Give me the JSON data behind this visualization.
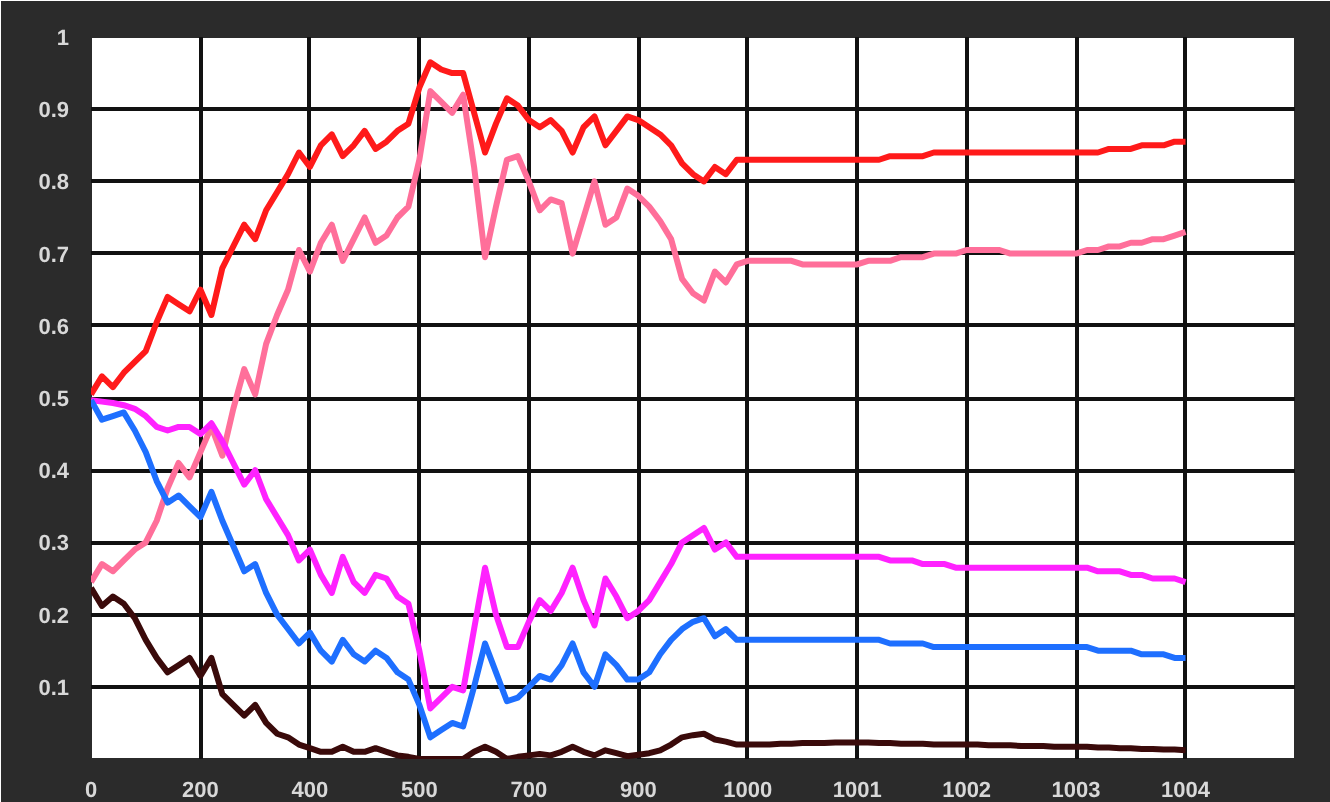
{
  "chart_data": {
    "type": "line",
    "categories": [
      "0",
      null,
      null,
      null,
      null,
      null,
      null,
      null,
      null,
      null,
      "200",
      null,
      null,
      null,
      null,
      null,
      null,
      null,
      null,
      null,
      "400",
      null,
      null,
      null,
      null,
      null,
      null,
      null,
      null,
      null,
      "500",
      null,
      null,
      null,
      null,
      null,
      null,
      null,
      null,
      null,
      "700",
      null,
      null,
      null,
      null,
      null,
      null,
      null,
      null,
      null,
      "900",
      null,
      null,
      null,
      null,
      null,
      null,
      null,
      null,
      null,
      "1000",
      null,
      null,
      null,
      null,
      null,
      null,
      null,
      null,
      null,
      "1001",
      null,
      null,
      null,
      null,
      null,
      null,
      null,
      null,
      null,
      "1002",
      null,
      null,
      null,
      null,
      null,
      null,
      null,
      null,
      null,
      "1003",
      null,
      null,
      null,
      null,
      null,
      null,
      null,
      null,
      null,
      "1004"
    ],
    "ylim": [
      0,
      1
    ],
    "yticks": [
      {
        "value": 0,
        "label": null
      },
      0.1,
      0.2,
      0.3,
      0.4,
      0.5,
      0.6,
      0.7,
      0.8,
      0.9,
      1
    ],
    "grid": true,
    "marker": "none",
    "line_style": "solid",
    "series": [
      {
        "color": "#ff1a1a",
        "values": [
          0.505,
          0.53,
          0.515,
          0.535,
          0.55,
          0.565,
          0.605,
          0.64,
          0.63,
          0.62,
          0.65,
          0.615,
          0.68,
          0.71,
          0.74,
          0.72,
          0.76,
          0.785,
          0.81,
          0.84,
          0.82,
          0.85,
          0.865,
          0.835,
          0.85,
          0.87,
          0.845,
          0.855,
          0.87,
          0.88,
          0.93,
          0.965,
          0.955,
          0.95,
          0.95,
          0.895,
          0.84,
          0.88,
          0.915,
          0.905,
          0.885,
          0.875,
          0.885,
          0.87,
          0.84,
          0.875,
          0.89,
          0.85,
          0.87,
          0.89,
          0.885,
          0.875,
          0.865,
          0.85,
          0.825,
          0.81,
          0.8,
          0.82,
          0.81,
          0.83,
          0.83,
          0.83,
          0.83,
          0.83,
          0.83,
          0.83,
          0.83,
          0.83,
          0.83,
          0.83,
          0.83,
          0.83,
          0.83,
          0.835,
          0.835,
          0.835,
          0.835,
          0.84,
          0.84,
          0.84,
          0.84,
          0.84,
          0.84,
          0.84,
          0.84,
          0.84,
          0.84,
          0.84,
          0.84,
          0.84,
          0.84,
          0.84,
          0.84,
          0.845,
          0.845,
          0.845,
          0.85,
          0.85,
          0.85,
          0.855,
          0.855
        ]
      },
      {
        "color": "#ff6f9a",
        "values": [
          0.245,
          0.27,
          0.26,
          0.275,
          0.29,
          0.3,
          0.33,
          0.375,
          0.41,
          0.39,
          0.425,
          0.46,
          0.42,
          0.485,
          0.54,
          0.505,
          0.575,
          0.615,
          0.65,
          0.705,
          0.675,
          0.715,
          0.74,
          0.69,
          0.72,
          0.75,
          0.715,
          0.725,
          0.75,
          0.765,
          0.83,
          0.925,
          0.91,
          0.895,
          0.92,
          0.82,
          0.695,
          0.765,
          0.83,
          0.835,
          0.8,
          0.76,
          0.775,
          0.77,
          0.7,
          0.75,
          0.8,
          0.74,
          0.75,
          0.79,
          0.78,
          0.765,
          0.745,
          0.72,
          0.665,
          0.645,
          0.635,
          0.675,
          0.66,
          0.685,
          0.69,
          0.69,
          0.69,
          0.69,
          0.69,
          0.685,
          0.685,
          0.685,
          0.685,
          0.685,
          0.685,
          0.69,
          0.69,
          0.69,
          0.695,
          0.695,
          0.695,
          0.7,
          0.7,
          0.7,
          0.705,
          0.705,
          0.705,
          0.705,
          0.7,
          0.7,
          0.7,
          0.7,
          0.7,
          0.7,
          0.7,
          0.705,
          0.705,
          0.71,
          0.71,
          0.715,
          0.715,
          0.72,
          0.72,
          0.725,
          0.73
        ]
      },
      {
        "color": "#ff22ff",
        "values": [
          0.497,
          0.495,
          0.493,
          0.49,
          0.485,
          0.475,
          0.46,
          0.455,
          0.46,
          0.46,
          0.45,
          0.465,
          0.44,
          0.41,
          0.38,
          0.4,
          0.36,
          0.335,
          0.31,
          0.275,
          0.29,
          0.255,
          0.23,
          0.28,
          0.245,
          0.23,
          0.255,
          0.25,
          0.225,
          0.215,
          0.15,
          0.07,
          0.085,
          0.1,
          0.095,
          0.18,
          0.265,
          0.2,
          0.155,
          0.155,
          0.19,
          0.22,
          0.205,
          0.23,
          0.265,
          0.22,
          0.185,
          0.25,
          0.225,
          0.195,
          0.205,
          0.22,
          0.245,
          0.27,
          0.3,
          0.31,
          0.32,
          0.29,
          0.3,
          0.28,
          0.28,
          0.28,
          0.28,
          0.28,
          0.28,
          0.28,
          0.28,
          0.28,
          0.28,
          0.28,
          0.28,
          0.28,
          0.28,
          0.275,
          0.275,
          0.275,
          0.27,
          0.27,
          0.27,
          0.265,
          0.265,
          0.265,
          0.265,
          0.265,
          0.265,
          0.265,
          0.265,
          0.265,
          0.265,
          0.265,
          0.265,
          0.265,
          0.26,
          0.26,
          0.26,
          0.255,
          0.255,
          0.25,
          0.25,
          0.25,
          0.245
        ]
      },
      {
        "color": "#1e6fff",
        "values": [
          0.497,
          0.47,
          0.475,
          0.48,
          0.455,
          0.425,
          0.385,
          0.355,
          0.365,
          0.35,
          0.335,
          0.37,
          0.33,
          0.295,
          0.26,
          0.27,
          0.23,
          0.2,
          0.18,
          0.16,
          0.175,
          0.15,
          0.135,
          0.165,
          0.145,
          0.135,
          0.15,
          0.14,
          0.12,
          0.11,
          0.075,
          0.03,
          0.04,
          0.05,
          0.045,
          0.1,
          0.16,
          0.12,
          0.08,
          0.085,
          0.1,
          0.115,
          0.11,
          0.13,
          0.16,
          0.12,
          0.1,
          0.145,
          0.13,
          0.11,
          0.11,
          0.12,
          0.145,
          0.165,
          0.18,
          0.19,
          0.195,
          0.17,
          0.18,
          0.165,
          0.165,
          0.165,
          0.165,
          0.165,
          0.165,
          0.165,
          0.165,
          0.165,
          0.165,
          0.165,
          0.165,
          0.165,
          0.165,
          0.16,
          0.16,
          0.16,
          0.16,
          0.155,
          0.155,
          0.155,
          0.155,
          0.155,
          0.155,
          0.155,
          0.155,
          0.155,
          0.155,
          0.155,
          0.155,
          0.155,
          0.155,
          0.155,
          0.15,
          0.15,
          0.15,
          0.15,
          0.145,
          0.145,
          0.145,
          0.14,
          0.14
        ]
      },
      {
        "color": "#3a0a0a",
        "values": [
          0.237,
          0.212,
          0.225,
          0.215,
          0.195,
          0.165,
          0.14,
          0.12,
          0.13,
          0.14,
          0.115,
          0.14,
          0.09,
          0.075,
          0.06,
          0.075,
          0.05,
          0.035,
          0.03,
          0.02,
          0.015,
          0.01,
          0.01,
          0.017,
          0.01,
          0.01,
          0.015,
          0.01,
          0.005,
          0.003,
          0,
          0,
          0,
          0,
          0,
          0.01,
          0.017,
          0.01,
          0,
          0.003,
          0.005,
          0.007,
          0.005,
          0.01,
          0.017,
          0.01,
          0.005,
          0.012,
          0.008,
          0.004,
          0.006,
          0.008,
          0.012,
          0.02,
          0.03,
          0.033,
          0.035,
          0.027,
          0.024,
          0.02,
          0.02,
          0.02,
          0.02,
          0.021,
          0.021,
          0.022,
          0.022,
          0.022,
          0.023,
          0.023,
          0.023,
          0.023,
          0.022,
          0.022,
          0.021,
          0.021,
          0.021,
          0.02,
          0.02,
          0.02,
          0.02,
          0.02,
          0.019,
          0.019,
          0.019,
          0.018,
          0.018,
          0.018,
          0.017,
          0.017,
          0.017,
          0.017,
          0.016,
          0.016,
          0.015,
          0.015,
          0.014,
          0.014,
          0.013,
          0.013,
          0.012
        ]
      }
    ]
  }
}
